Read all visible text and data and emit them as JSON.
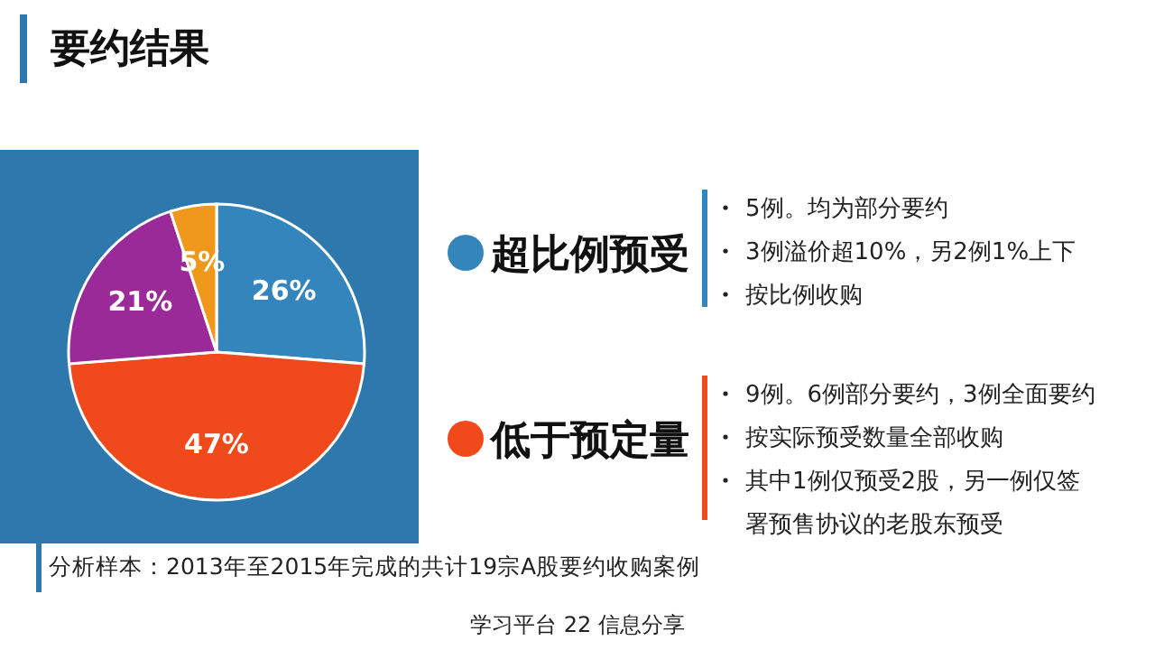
{
  "chart_data": {
    "type": "pie",
    "title": "要约结果",
    "categories": [
      "超比例预受",
      "低于预定量",
      null,
      null
    ],
    "values": [
      26,
      47,
      21,
      5
    ],
    "colors": [
      "#3585bd",
      "#f04a1c",
      "#9a2a98",
      "#f0981c"
    ],
    "value_labels": [
      "26%",
      "47%",
      "21%",
      "5%"
    ],
    "legend": "right",
    "annotations": [
      "5例。均为部分要约",
      "3例溢价超10%，另2例1%上下",
      "按比例收购",
      "9例。6例部分要约，3例全面要约",
      "按实际预受数量全部收购",
      "其中1例仅预受2股，另一例仅签署预售协议的老股东预受",
      "分析样本：2013年至2015年完成的共计19宗A股要约收购案例",
      "学习平台 22 信息分享"
    ]
  }
}
